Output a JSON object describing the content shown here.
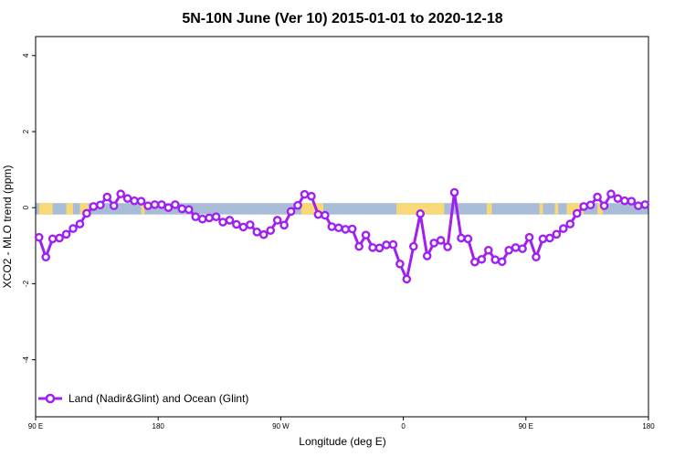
{
  "chart_data": {
    "type": "line",
    "title": "5N-10N June (Ver 10)   2015-01-01 to 2020-12-18",
    "xlabel": "Longitude (deg E)",
    "ylabel": "XCO2 - MLO trend (ppm)",
    "xlim": [
      90,
      450
    ],
    "ylim": [
      -5.5,
      4.5
    ],
    "x_ticks": [
      {
        "value": 90,
        "label": "90 E"
      },
      {
        "value": 162,
        "label": "180"
      },
      {
        "value": 234,
        "label": "90 W"
      },
      {
        "value": 306,
        "label": "0"
      },
      {
        "value": 378,
        "label": "90 E"
      },
      {
        "value": 450,
        "label": "180"
      }
    ],
    "y_ticks": [
      {
        "value": -4,
        "label": "-4"
      },
      {
        "value": -2,
        "label": "-2"
      },
      {
        "value": 0,
        "label": "0"
      },
      {
        "value": 2,
        "label": "2"
      },
      {
        "value": 4,
        "label": "4"
      }
    ],
    "grid": false,
    "legend_position": "bottom-left",
    "series": [
      {
        "name": "Land (Nadir&Glint) and Ocean (Glint)",
        "color": "#a020f0",
        "x": [
          92,
          96,
          100,
          104,
          108,
          112,
          116,
          120,
          124,
          128,
          132,
          136,
          140,
          144,
          148,
          152,
          156,
          160,
          164,
          168,
          172,
          176,
          180,
          184,
          188,
          192,
          196,
          200,
          204,
          208,
          212,
          216,
          220,
          224,
          228,
          232,
          236,
          240,
          244,
          248,
          252,
          256,
          260,
          264,
          268,
          272,
          276,
          280,
          284,
          288,
          292,
          296,
          300,
          304,
          308,
          312,
          316,
          320,
          324,
          328,
          332,
          336,
          340,
          344,
          348,
          352,
          356,
          360,
          364,
          368,
          372,
          376,
          380,
          384,
          388,
          392,
          396,
          400,
          404,
          408,
          412,
          416,
          420,
          424,
          428,
          432,
          436,
          440,
          444,
          448
        ],
        "y": [
          -0.78,
          -1.3,
          -0.82,
          -0.8,
          -0.7,
          -0.55,
          -0.43,
          -0.15,
          0.03,
          0.07,
          0.28,
          0.05,
          0.36,
          0.24,
          0.18,
          0.17,
          0.05,
          0.08,
          0.08,
          0.0,
          0.08,
          -0.03,
          -0.05,
          -0.24,
          -0.3,
          -0.27,
          -0.24,
          -0.38,
          -0.33,
          -0.44,
          -0.51,
          -0.45,
          -0.64,
          -0.71,
          -0.6,
          -0.33,
          -0.46,
          -0.1,
          0.06,
          0.35,
          0.3,
          -0.18,
          -0.2,
          -0.5,
          -0.53,
          -0.57,
          -0.56,
          -1.02,
          -0.72,
          -1.05,
          -1.06,
          -0.98,
          -0.97,
          -1.48,
          -1.88,
          -1.02,
          -0.16,
          -1.27,
          -0.93,
          -0.86,
          -1.03,
          0.4,
          -0.8,
          -0.82,
          -1.43,
          -1.36,
          -1.12,
          -1.37,
          -1.42,
          -1.12,
          -1.05,
          -1.08,
          -0.78,
          -1.3,
          -0.82,
          -0.8,
          -0.7,
          -0.55,
          -0.43,
          -0.15,
          0.03,
          0.07,
          0.28,
          0.05,
          0.36,
          0.24,
          0.18,
          0.17,
          0.05,
          0.08
        ]
      }
    ],
    "land_ocean_band": {
      "y_range": [
        -0.18,
        0.12
      ],
      "ocean_color": "#a8bcd8",
      "land_color": "#f8d978",
      "land_x_ranges": [
        [
          92,
          100
        ],
        [
          108,
          112
        ],
        [
          116,
          121
        ],
        [
          152,
          154
        ],
        [
          246,
          259
        ],
        [
          302,
          330
        ],
        [
          355,
          358
        ],
        [
          386,
          388
        ],
        [
          395,
          397
        ],
        [
          402,
          412
        ],
        [
          420,
          423
        ]
      ]
    }
  }
}
